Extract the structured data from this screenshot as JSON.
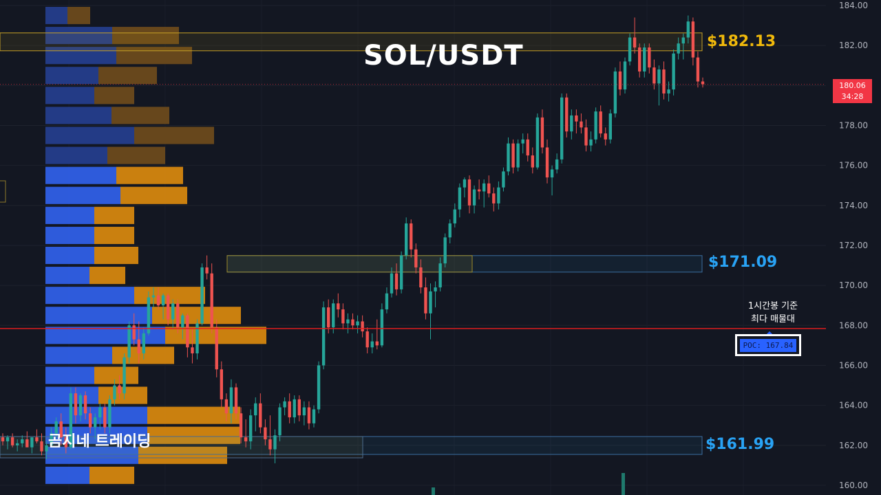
{
  "header": {
    "title": "SOL/USDT"
  },
  "watermark": "곰지네 트레이딩",
  "levels": {
    "top": {
      "label": "$182.13",
      "value": 182.13,
      "color": "#f0b90b"
    },
    "mid": {
      "label": "$171.09",
      "value": 171.09,
      "color": "#29a3f5"
    },
    "low": {
      "label": "$161.99",
      "value": 161.99,
      "color": "#29a3f5"
    }
  },
  "note": {
    "line1": "1시간봉 기준",
    "line2": "최다 매물대"
  },
  "poc": {
    "label": "POC: 167.84",
    "value": 167.84
  },
  "last_price": {
    "price": "180.06",
    "countdown": "34:28",
    "value": 180.06
  },
  "chart_data": {
    "type": "candlestick",
    "title": "SOL/USDT",
    "ylim": [
      159.6,
      184.2
    ],
    "y_ticks": [
      "184.00",
      "182.00",
      "180.00",
      "178.00",
      "176.00",
      "174.00",
      "172.00",
      "170.00",
      "168.00",
      "166.00",
      "164.00",
      "162.00",
      "160.00"
    ],
    "colors": {
      "up": "#26a69a",
      "down": "#ef5350",
      "poc_line": "#e01e1e"
    },
    "volume_profile": {
      "bins": [
        {
          "price": 183.0,
          "buy": 32,
          "sell": 33
        },
        {
          "price": 182.0,
          "buy": 97,
          "sell": 97
        },
        {
          "price": 181.0,
          "buy": 103,
          "sell": 110
        },
        {
          "price": 180.0,
          "buy": 77,
          "sell": 85
        },
        {
          "price": 179.0,
          "buy": 71,
          "sell": 58
        },
        {
          "price": 178.0,
          "buy": 96,
          "sell": 84
        },
        {
          "price": 177.0,
          "buy": 129,
          "sell": 116
        },
        {
          "price": 176.0,
          "buy": 90,
          "sell": 84
        },
        {
          "price": 175.0,
          "buy": 103,
          "sell": 97
        },
        {
          "price": 174.0,
          "buy": 109,
          "sell": 97
        },
        {
          "price": 173.0,
          "buy": 71,
          "sell": 58
        },
        {
          "price": 172.0,
          "buy": 71,
          "sell": 58
        },
        {
          "price": 171.0,
          "buy": 71,
          "sell": 64
        },
        {
          "price": 170.0,
          "buy": 64,
          "sell": 52
        },
        {
          "price": 169.0,
          "buy": 129,
          "sell": 103
        },
        {
          "price": 168.0,
          "buy": 155,
          "sell": 129
        },
        {
          "price": 167.0,
          "buy": 174,
          "sell": 147
        },
        {
          "price": 166.0,
          "buy": 97,
          "sell": 90
        },
        {
          "price": 165.0,
          "buy": 71,
          "sell": 64
        },
        {
          "price": 164.0,
          "buy": 77,
          "sell": 71
        },
        {
          "price": 163.0,
          "buy": 148,
          "sell": 135
        },
        {
          "price": 162.0,
          "buy": 148,
          "sell": 135
        },
        {
          "price": 161.0,
          "buy": 135,
          "sell": 129
        },
        {
          "price": 160.0,
          "buy": 64,
          "sell": 65
        }
      ]
    },
    "candles": [
      [
        162.4,
        162.6,
        162.0,
        162.2
      ],
      [
        162.2,
        162.5,
        161.8,
        162.4
      ],
      [
        162.4,
        162.6,
        161.9,
        162.0
      ],
      [
        162.0,
        162.3,
        161.7,
        162.1
      ],
      [
        162.1,
        162.5,
        161.9,
        162.3
      ],
      [
        162.3,
        162.7,
        162.0,
        161.9
      ],
      [
        161.9,
        162.4,
        161.6,
        162.4
      ],
      [
        162.4,
        162.8,
        162.1,
        162.2
      ],
      [
        162.2,
        162.6,
        161.5,
        161.7
      ],
      [
        161.7,
        162.2,
        161.3,
        162.0
      ],
      [
        162.0,
        162.9,
        161.9,
        162.6
      ],
      [
        162.6,
        163.4,
        162.4,
        163.2
      ],
      [
        163.2,
        163.6,
        162.0,
        162.4
      ],
      [
        162.4,
        162.9,
        161.6,
        161.9
      ],
      [
        161.9,
        164.9,
        161.8,
        164.6
      ],
      [
        164.6,
        164.9,
        163.1,
        163.5
      ],
      [
        163.5,
        164.6,
        163.2,
        164.5
      ],
      [
        164.5,
        164.7,
        163.3,
        163.6
      ],
      [
        163.6,
        163.9,
        162.6,
        162.9
      ],
      [
        162.9,
        163.6,
        162.3,
        163.4
      ],
      [
        163.4,
        164.1,
        162.8,
        163.9
      ],
      [
        163.9,
        164.1,
        162.6,
        162.9
      ],
      [
        162.9,
        164.5,
        162.6,
        164.3
      ],
      [
        164.3,
        165.3,
        164.0,
        165.0
      ],
      [
        165.0,
        165.5,
        164.3,
        164.6
      ],
      [
        164.6,
        166.6,
        164.3,
        166.4
      ],
      [
        166.4,
        168.2,
        166.1,
        168.0
      ],
      [
        168.0,
        168.6,
        167.0,
        167.3
      ],
      [
        167.3,
        168.2,
        166.1,
        166.6
      ],
      [
        166.6,
        167.9,
        166.3,
        167.6
      ],
      [
        167.6,
        169.7,
        167.5,
        169.4
      ],
      [
        169.4,
        169.9,
        168.9,
        169.5
      ],
      [
        169.5,
        169.9,
        168.8,
        169.0
      ],
      [
        169.0,
        169.6,
        168.3,
        169.5
      ],
      [
        169.5,
        169.6,
        168.0,
        168.3
      ],
      [
        168.3,
        169.3,
        167.8,
        169.1
      ],
      [
        169.1,
        169.3,
        167.6,
        167.9
      ],
      [
        167.9,
        168.6,
        167.3,
        168.5
      ],
      [
        168.5,
        168.6,
        166.4,
        166.9
      ],
      [
        166.9,
        167.8,
        166.1,
        166.6
      ],
      [
        166.6,
        168.3,
        166.3,
        168.1
      ],
      [
        168.1,
        171.1,
        168.0,
        170.9
      ],
      [
        170.9,
        171.5,
        170.3,
        170.6
      ],
      [
        170.6,
        171.1,
        167.6,
        167.9
      ],
      [
        167.9,
        168.3,
        165.4,
        165.8
      ],
      [
        165.8,
        166.2,
        163.9,
        164.3
      ],
      [
        164.3,
        164.6,
        163.2,
        163.6
      ],
      [
        163.6,
        165.3,
        163.1,
        164.9
      ],
      [
        164.9,
        165.1,
        163.3,
        163.6
      ],
      [
        163.6,
        163.9,
        162.1,
        162.4
      ],
      [
        162.4,
        163.3,
        161.9,
        162.2
      ],
      [
        162.2,
        163.8,
        161.8,
        163.5
      ],
      [
        163.5,
        164.4,
        162.7,
        164.1
      ],
      [
        164.1,
        164.6,
        162.6,
        162.9
      ],
      [
        162.9,
        163.3,
        162.0,
        162.3
      ],
      [
        162.3,
        163.5,
        161.5,
        161.8
      ],
      [
        161.8,
        162.8,
        161.1,
        162.5
      ],
      [
        162.5,
        164.1,
        162.2,
        163.9
      ],
      [
        163.9,
        164.4,
        163.5,
        164.2
      ],
      [
        164.2,
        164.6,
        163.1,
        163.4
      ],
      [
        163.4,
        164.5,
        163.1,
        164.3
      ],
      [
        164.3,
        164.5,
        163.2,
        163.5
      ],
      [
        163.5,
        164.2,
        163.0,
        163.9
      ],
      [
        163.9,
        164.2,
        162.8,
        163.1
      ],
      [
        163.1,
        164.0,
        162.9,
        163.8
      ],
      [
        163.8,
        166.2,
        163.6,
        166.0
      ],
      [
        166.0,
        169.2,
        165.8,
        168.9
      ],
      [
        168.9,
        169.3,
        167.6,
        167.9
      ],
      [
        167.9,
        169.3,
        167.6,
        169.1
      ],
      [
        169.1,
        169.6,
        168.4,
        168.8
      ],
      [
        168.8,
        169.1,
        167.8,
        168.1
      ],
      [
        168.1,
        168.6,
        167.6,
        168.3
      ],
      [
        168.3,
        168.6,
        167.8,
        168.0
      ],
      [
        168.0,
        168.5,
        167.6,
        168.2
      ],
      [
        168.2,
        168.5,
        167.4,
        167.7
      ],
      [
        167.7,
        167.9,
        166.6,
        166.9
      ],
      [
        166.9,
        167.6,
        166.6,
        167.2
      ],
      [
        167.2,
        168.3,
        166.8,
        167.0
      ],
      [
        167.0,
        169.1,
        166.9,
        168.8
      ],
      [
        168.8,
        169.9,
        168.6,
        169.6
      ],
      [
        169.6,
        170.9,
        169.4,
        170.6
      ],
      [
        170.6,
        171.1,
        169.5,
        169.8
      ],
      [
        169.8,
        171.7,
        169.6,
        171.5
      ],
      [
        171.5,
        173.4,
        171.3,
        173.1
      ],
      [
        173.1,
        173.3,
        171.4,
        171.8
      ],
      [
        171.8,
        172.1,
        170.6,
        170.9
      ],
      [
        170.9,
        171.3,
        169.6,
        169.9
      ],
      [
        169.9,
        170.4,
        168.3,
        168.6
      ],
      [
        168.6,
        170.1,
        167.3,
        169.7
      ],
      [
        169.7,
        170.2,
        168.9,
        169.9
      ],
      [
        169.9,
        171.4,
        169.7,
        171.1
      ],
      [
        171.1,
        172.6,
        170.9,
        172.4
      ],
      [
        172.4,
        173.3,
        172.1,
        173.1
      ],
      [
        173.1,
        174.1,
        172.9,
        173.8
      ],
      [
        173.8,
        175.1,
        173.4,
        174.9
      ],
      [
        174.9,
        175.4,
        174.4,
        175.3
      ],
      [
        175.3,
        175.5,
        173.6,
        174.0
      ],
      [
        174.0,
        175.0,
        173.6,
        174.8
      ],
      [
        174.8,
        175.3,
        174.3,
        174.7
      ],
      [
        174.7,
        175.3,
        173.9,
        175.1
      ],
      [
        175.1,
        175.5,
        174.4,
        174.6
      ],
      [
        174.6,
        174.9,
        173.7,
        174.1
      ],
      [
        174.1,
        175.2,
        173.8,
        174.9
      ],
      [
        174.9,
        175.9,
        174.7,
        175.7
      ],
      [
        175.7,
        177.4,
        175.5,
        177.1
      ],
      [
        177.1,
        177.3,
        175.6,
        175.9
      ],
      [
        175.9,
        177.3,
        175.7,
        177.1
      ],
      [
        177.1,
        177.6,
        176.6,
        177.3
      ],
      [
        177.3,
        177.6,
        176.2,
        176.5
      ],
      [
        176.5,
        176.9,
        175.6,
        175.9
      ],
      [
        175.9,
        178.6,
        175.8,
        178.4
      ],
      [
        178.4,
        178.8,
        176.6,
        176.9
      ],
      [
        176.9,
        177.3,
        175.1,
        175.4
      ],
      [
        175.4,
        176.0,
        174.5,
        175.8
      ],
      [
        175.8,
        176.6,
        175.6,
        176.3
      ],
      [
        176.3,
        179.6,
        176.1,
        179.4
      ],
      [
        179.4,
        179.6,
        177.4,
        177.7
      ],
      [
        177.7,
        178.8,
        177.3,
        178.5
      ],
      [
        178.5,
        178.8,
        177.6,
        178.2
      ],
      [
        178.2,
        178.6,
        177.6,
        177.9
      ],
      [
        177.9,
        178.3,
        176.7,
        177.0
      ],
      [
        177.0,
        177.7,
        176.7,
        177.3
      ],
      [
        177.3,
        178.9,
        177.1,
        178.7
      ],
      [
        178.7,
        179.0,
        177.4,
        177.6
      ],
      [
        177.6,
        177.9,
        177.0,
        177.3
      ],
      [
        177.3,
        178.8,
        177.1,
        178.6
      ],
      [
        178.6,
        180.9,
        178.4,
        180.7
      ],
      [
        180.7,
        181.2,
        179.5,
        179.8
      ],
      [
        179.8,
        181.4,
        179.6,
        181.2
      ],
      [
        181.2,
        182.6,
        181.0,
        182.4
      ],
      [
        182.4,
        183.4,
        181.6,
        181.9
      ],
      [
        181.9,
        182.1,
        180.4,
        180.7
      ],
      [
        180.7,
        182.1,
        180.4,
        181.9
      ],
      [
        181.9,
        182.1,
        180.6,
        180.9
      ],
      [
        180.9,
        181.3,
        179.8,
        180.1
      ],
      [
        180.1,
        181.0,
        179.0,
        180.8
      ],
      [
        180.8,
        181.2,
        179.3,
        179.6
      ],
      [
        179.6,
        180.2,
        179.2,
        179.8
      ],
      [
        179.8,
        181.8,
        179.5,
        181.6
      ],
      [
        181.6,
        182.4,
        181.3,
        182.1
      ],
      [
        182.1,
        182.6,
        181.3,
        182.4
      ],
      [
        182.4,
        183.5,
        182.1,
        183.2
      ],
      [
        183.2,
        183.4,
        181.0,
        181.4
      ],
      [
        181.4,
        181.7,
        179.9,
        180.2
      ],
      [
        180.2,
        180.4,
        179.9,
        180.06
      ]
    ]
  }
}
